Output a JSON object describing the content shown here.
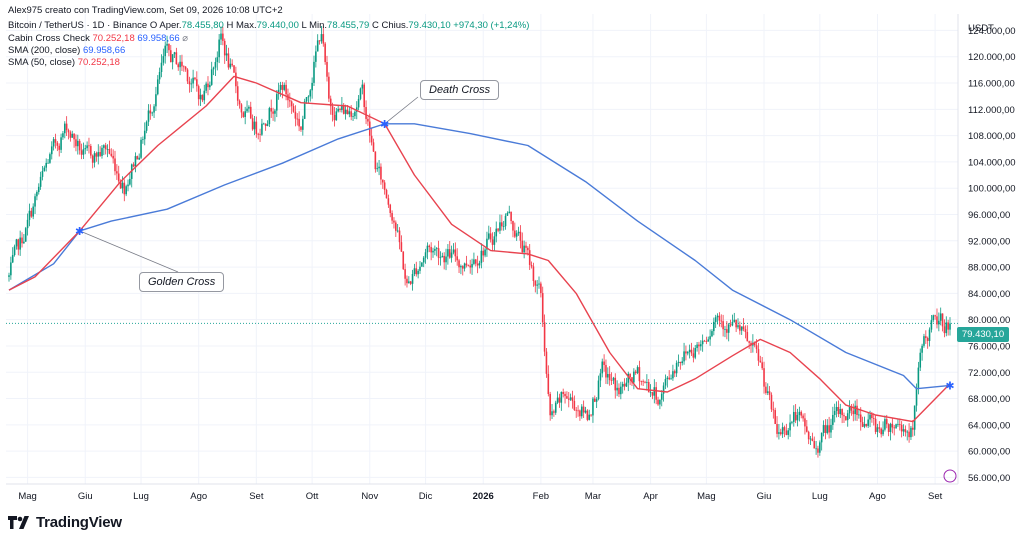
{
  "header": {
    "credit": "Alex975 creato con TradingView.com, Set 09, 2026 10:08 UTC+2",
    "symbol": "Bitcoin / TetherUS · 1D · Binance",
    "open_label": "O",
    "open_text": "Aper.",
    "open_value": "78.455,80",
    "high_label": "H",
    "high_text": "Max.",
    "high_value": "79.440,00",
    "low_label": "L",
    "low_text": "Min.",
    "low_value": "78.455,79",
    "close_label": "C",
    "close_text": "Chius.",
    "close_value": "79.430,10",
    "change_value": "+974,30 (+1,24%)",
    "indicator1_name": "Cabin Cross Check",
    "indicator1_v1": "70.252,18",
    "indicator1_v2": "69.958,66",
    "indicator2_name": "SMA (200, close)",
    "indicator2_value": "69.958,66",
    "indicator3_name": "SMA (50, close)",
    "indicator3_value": "70.252,18"
  },
  "currency": "USDT",
  "current_price_label": "79.430,10",
  "annotations": {
    "death_cross": "Death Cross",
    "golden_cross": "Golden Cross"
  },
  "footer": {
    "logo_text": "TradingView"
  },
  "colors": {
    "up": "#089981",
    "down": "#f23645",
    "sma200": "#4a7bd8",
    "sma50": "#e8434f",
    "price_tag": "#26a69a",
    "grid": "#f0f3fa"
  },
  "chart_data": {
    "type": "candlestick",
    "x_tick_labels": [
      "Mag",
      "Giu",
      "Lug",
      "Ago",
      "Set",
      "Ott",
      "Nov",
      "Dic",
      "2026",
      "Feb",
      "Mar",
      "Apr",
      "Mag",
      "Giu",
      "Lug",
      "Ago",
      "Set"
    ],
    "y_tick_labels": [
      "124.000,00",
      "120.000,00",
      "116.000,00",
      "112.000,00",
      "108.000,00",
      "104.000,00",
      "100.000,00",
      "96.000,00",
      "92.000,00",
      "88.000,00",
      "84.000,00",
      "80.000,00",
      "76.000,00",
      "72.000,00",
      "68.000,00",
      "64.000,00",
      "60.000,00",
      "56.000,00"
    ],
    "ylim": [
      55000,
      126500
    ],
    "date_range": [
      "2025-04-21",
      "2026-09-09"
    ],
    "close_anchors": [
      [
        "2025-04-21",
        86500
      ],
      [
        "2025-05-01",
        94500
      ],
      [
        "2025-05-12",
        104000
      ],
      [
        "2025-05-22",
        109500
      ],
      [
        "2025-06-01",
        104500
      ],
      [
        "2025-06-13",
        106000
      ],
      [
        "2025-06-22",
        100500
      ],
      [
        "2025-07-01",
        107000
      ],
      [
        "2025-07-14",
        120000
      ],
      [
        "2025-07-24",
        118500
      ],
      [
        "2025-08-03",
        113500
      ],
      [
        "2025-08-13",
        123000
      ],
      [
        "2025-08-24",
        112000
      ],
      [
        "2025-09-01",
        109000
      ],
      [
        "2025-09-15",
        115500
      ],
      [
        "2025-09-25",
        109500
      ],
      [
        "2025-10-06",
        124500
      ],
      [
        "2025-10-10",
        112500
      ],
      [
        "2025-10-20",
        111500
      ],
      [
        "2025-10-28",
        114500
      ],
      [
        "2025-11-04",
        103500
      ],
      [
        "2025-11-14",
        96000
      ],
      [
        "2025-11-21",
        85000
      ],
      [
        "2025-12-02",
        91000
      ],
      [
        "2025-12-12",
        90000
      ],
      [
        "2025-12-22",
        88500
      ],
      [
        "2026-01-05",
        92000
      ],
      [
        "2026-01-14",
        96500
      ],
      [
        "2026-01-24",
        90000
      ],
      [
        "2026-02-01",
        83500
      ],
      [
        "2026-02-06",
        64500
      ],
      [
        "2026-02-14",
        68500
      ],
      [
        "2026-02-26",
        65500
      ],
      [
        "2026-03-06",
        72000
      ],
      [
        "2026-03-15",
        69000
      ],
      [
        "2026-03-25",
        71500
      ],
      [
        "2026-04-06",
        68000
      ],
      [
        "2026-04-16",
        74500
      ],
      [
        "2026-04-28",
        76500
      ],
      [
        "2026-05-06",
        81000
      ],
      [
        "2026-05-18",
        78500
      ],
      [
        "2026-05-30",
        73000
      ],
      [
        "2026-06-08",
        62500
      ],
      [
        "2026-06-18",
        65500
      ],
      [
        "2026-06-28",
        60500
      ],
      [
        "2026-07-08",
        64500
      ],
      [
        "2026-07-20",
        66500
      ],
      [
        "2026-07-31",
        63500
      ],
      [
        "2026-08-10",
        64500
      ],
      [
        "2026-08-20",
        63000
      ],
      [
        "2026-08-25",
        76500
      ],
      [
        "2026-09-01",
        79500
      ],
      [
        "2026-09-09",
        79430
      ]
    ],
    "series": [
      {
        "name": "SMA (200, close)",
        "points": [
          [
            "2025-04-21",
            84500
          ],
          [
            "2025-05-15",
            88500
          ],
          [
            "2025-05-29",
            93500
          ],
          [
            "2025-06-15",
            95000
          ],
          [
            "2025-07-15",
            96800
          ],
          [
            "2025-08-15",
            100500
          ],
          [
            "2025-09-15",
            103800
          ],
          [
            "2025-10-15",
            107500
          ],
          [
            "2025-11-09",
            109800
          ],
          [
            "2025-11-25",
            109800
          ],
          [
            "2025-12-25",
            108300
          ],
          [
            "2026-01-25",
            106500
          ],
          [
            "2026-02-25",
            101000
          ],
          [
            "2026-03-25",
            95000
          ],
          [
            "2026-04-25",
            89000
          ],
          [
            "2026-05-15",
            84500
          ],
          [
            "2026-06-15",
            80000
          ],
          [
            "2026-07-15",
            75000
          ],
          [
            "2026-08-15",
            71500
          ],
          [
            "2026-08-22",
            69500
          ],
          [
            "2026-09-09",
            70000
          ]
        ]
      },
      {
        "name": "SMA (50, close)",
        "points": [
          [
            "2025-04-21",
            84500
          ],
          [
            "2025-05-05",
            86500
          ],
          [
            "2025-05-29",
            93500
          ],
          [
            "2025-06-20",
            101000
          ],
          [
            "2025-07-10",
            106500
          ],
          [
            "2025-08-05",
            112500
          ],
          [
            "2025-08-20",
            117000
          ],
          [
            "2025-09-01",
            116000
          ],
          [
            "2025-09-25",
            113000
          ],
          [
            "2025-10-20",
            112500
          ],
          [
            "2025-11-09",
            109800
          ],
          [
            "2025-11-25",
            102000
          ],
          [
            "2025-12-15",
            94500
          ],
          [
            "2026-01-05",
            90500
          ],
          [
            "2026-01-25",
            90000
          ],
          [
            "2026-02-05",
            89000
          ],
          [
            "2026-02-20",
            84000
          ],
          [
            "2026-03-10",
            75000
          ],
          [
            "2026-03-25",
            69500
          ],
          [
            "2026-04-10",
            69000
          ],
          [
            "2026-04-25",
            71000
          ],
          [
            "2026-05-15",
            74500
          ],
          [
            "2026-05-30",
            77000
          ],
          [
            "2026-06-15",
            75000
          ],
          [
            "2026-07-01",
            71000
          ],
          [
            "2026-07-15",
            67000
          ],
          [
            "2026-07-31",
            65500
          ],
          [
            "2026-08-20",
            64500
          ],
          [
            "2026-09-09",
            70250
          ]
        ]
      }
    ],
    "events": [
      {
        "label": "Golden Cross",
        "date": "2025-05-29",
        "price": 93500
      },
      {
        "label": "Death Cross",
        "date": "2025-11-09",
        "price": 109800
      },
      {
        "label": "",
        "date": "2026-09-09",
        "price": 70000
      }
    ],
    "current_price": 79430.1,
    "grid": true
  }
}
